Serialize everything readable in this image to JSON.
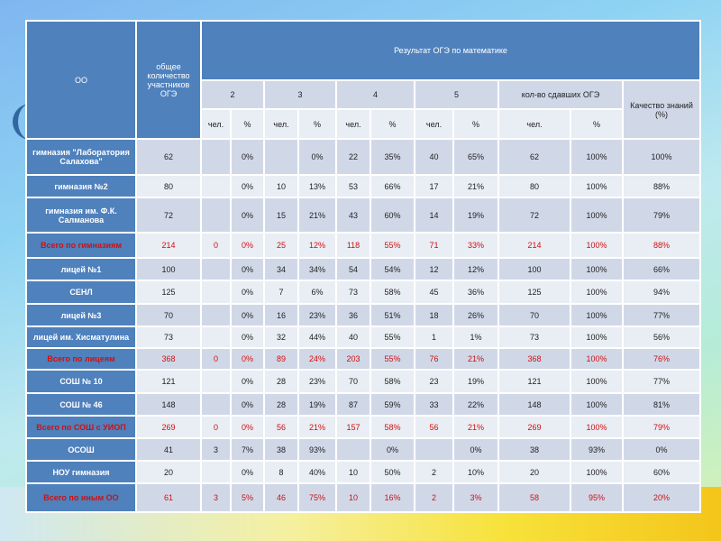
{
  "header": {
    "org": "ОО",
    "total": "общее количество участников ОГЭ",
    "result": "Результат ОГЭ по математике",
    "grades": [
      "2",
      "3",
      "4",
      "5",
      "кол-во сдавших ОГЭ"
    ],
    "quality": "Качество знаний (%)",
    "people": "чел.",
    "percent": "%"
  },
  "rows": [
    {
      "name": "гимназия \"Лаборатория Салахова\"",
      "total": true,
      "v": [
        "62",
        "",
        "0%",
        "",
        "0%",
        "22",
        "35%",
        "40",
        "65%",
        "62",
        "100%",
        "100%"
      ]
    },
    {
      "name": "гимназия №2",
      "v": [
        "80",
        "",
        "0%",
        "10",
        "13%",
        "53",
        "66%",
        "17",
        "21%",
        "80",
        "100%",
        "88%"
      ]
    },
    {
      "name": "гимназия им. Ф.К. Салманова",
      "v": [
        "72",
        "",
        "0%",
        "15",
        "21%",
        "43",
        "60%",
        "14",
        "19%",
        "72",
        "100%",
        "79%"
      ]
    },
    {
      "name": "Всего по гимназиям",
      "sum": true,
      "v": [
        "214",
        "0",
        "0%",
        "25",
        "12%",
        "118",
        "55%",
        "71",
        "33%",
        "214",
        "100%",
        "88%"
      ]
    },
    {
      "name": "лицей  №1",
      "v": [
        "100",
        "",
        "0%",
        "34",
        "34%",
        "54",
        "54%",
        "12",
        "12%",
        "100",
        "100%",
        "66%"
      ]
    },
    {
      "name": "СЕНЛ",
      "v": [
        "125",
        "",
        "0%",
        "7",
        "6%",
        "73",
        "58%",
        "45",
        "36%",
        "125",
        "100%",
        "94%"
      ]
    },
    {
      "name": "лицей №3",
      "v": [
        "70",
        "",
        "0%",
        "16",
        "23%",
        "36",
        "51%",
        "18",
        "26%",
        "70",
        "100%",
        "77%"
      ]
    },
    {
      "name": "лицей им. Хисматулина",
      "v": [
        "73",
        "",
        "0%",
        "32",
        "44%",
        "40",
        "55%",
        "1",
        "1%",
        "73",
        "100%",
        "56%"
      ]
    },
    {
      "name": "Всего  по лицеям",
      "sum": true,
      "v": [
        "368",
        "0",
        "0%",
        "89",
        "24%",
        "203",
        "55%",
        "76",
        "21%",
        "368",
        "100%",
        "76%"
      ]
    },
    {
      "name": "СОШ №  10",
      "v": [
        "121",
        "",
        "0%",
        "28",
        "23%",
        "70",
        "58%",
        "23",
        "19%",
        "121",
        "100%",
        "77%"
      ]
    },
    {
      "name": "СОШ №  46",
      "v": [
        "148",
        "",
        "0%",
        "28",
        "19%",
        "87",
        "59%",
        "33",
        "22%",
        "148",
        "100%",
        "81%"
      ]
    },
    {
      "name": "Всего по СОШ с УИОП",
      "sum": true,
      "v": [
        "269",
        "0",
        "0%",
        "56",
        "21%",
        "157",
        "58%",
        "56",
        "21%",
        "269",
        "100%",
        "79%"
      ]
    },
    {
      "name": "ОСОШ",
      "v": [
        "41",
        "3",
        "7%",
        "38",
        "93%",
        "",
        "0%",
        "",
        "0%",
        "38",
        "93%",
        "0%"
      ]
    },
    {
      "name": "НОУ гимназия",
      "v": [
        "20",
        "",
        "0%",
        "8",
        "40%",
        "10",
        "50%",
        "2",
        "10%",
        "20",
        "100%",
        "60%"
      ]
    },
    {
      "name": "Всего по иным ОО",
      "sum": true,
      "v": [
        "61",
        "3",
        "5%",
        "46",
        "75%",
        "10",
        "16%",
        "2",
        "3%",
        "58",
        "95%",
        "20%"
      ]
    }
  ]
}
